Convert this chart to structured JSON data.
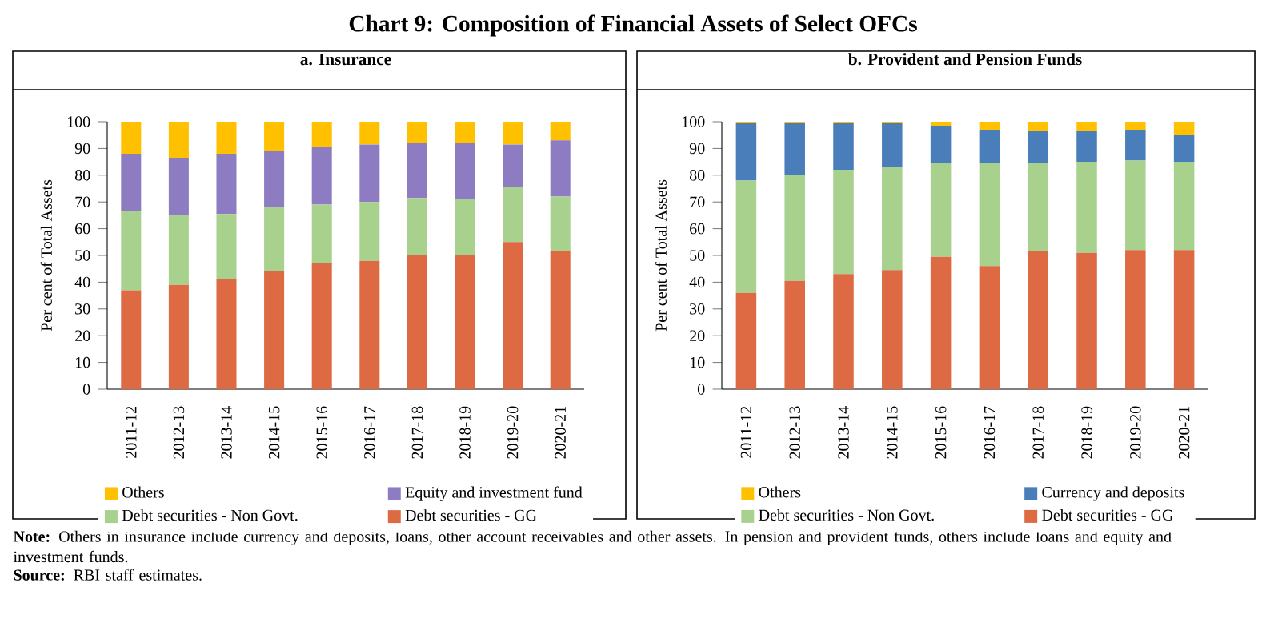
{
  "chart_data": [
    {
      "type": "other",
      "title": "Chart 9: Composition of Financial Assets of Select OFCs",
      "annotations": [
        "**Note:** Others in insurance include currency and deposits, loans, other account receivables and other assets. In pension and provident funds, others include loans and equity and investment funds.",
        "**Source:** RBI staff estimates."
      ]
    },
    {
      "type": "bar",
      "title": "a. Insurance",
      "ylabel": "Per cent of Total Assets",
      "stacked": true,
      "legend": "bottom",
      "ylim": [
        0,
        100
      ],
      "yticks": [
        0,
        10,
        20,
        30,
        40,
        50,
        60,
        70,
        80,
        90,
        100
      ],
      "categories": [
        "2011-12",
        "2012-13",
        "2013-14",
        "2014-15",
        "2015-16",
        "2016-17",
        "2017-18",
        "2018-19",
        "2019-20",
        "2020-21"
      ],
      "series": [
        {
          "name": "Debt securities - GG",
          "color": "#dd6a43",
          "values": [
            37,
            39,
            41,
            44,
            47,
            48,
            50,
            50,
            55,
            51.5
          ]
        },
        {
          "name": "Debt securities - Non Govt.",
          "color": "#a9d18e",
          "values": [
            29.5,
            26,
            24.5,
            24,
            22,
            22,
            21.5,
            21,
            20.5,
            20.5
          ]
        },
        {
          "name": "Equity and investment fund",
          "color": "#8e7cc3",
          "values": [
            21.5,
            21.5,
            22.5,
            21,
            21.5,
            21.5,
            20.5,
            21,
            16,
            21
          ]
        },
        {
          "name": "Others",
          "color": "#ffc000",
          "values": [
            12,
            13.5,
            12,
            11,
            9.5,
            8.5,
            8,
            8,
            8.5,
            7
          ]
        }
      ]
    },
    {
      "type": "bar",
      "title": "b. Provident and Pension Funds",
      "ylabel": "Per cent of Total Assets",
      "stacked": true,
      "legend": "bottom",
      "ylim": [
        0,
        100
      ],
      "yticks": [
        0,
        10,
        20,
        30,
        40,
        50,
        60,
        70,
        80,
        90,
        100
      ],
      "categories": [
        "2011-12",
        "2012-13",
        "2013-14",
        "2014-15",
        "2015-16",
        "2016-17",
        "2017-18",
        "2018-19",
        "2019-20",
        "2020-21"
      ],
      "series": [
        {
          "name": "Debt securities - GG",
          "color": "#dd6a43",
          "values": [
            36,
            40.5,
            43,
            44.5,
            49.5,
            46,
            51.5,
            51,
            52,
            52
          ]
        },
        {
          "name": "Debt securities - Non Govt.",
          "color": "#a9d18e",
          "values": [
            42,
            39.5,
            39,
            38.5,
            35,
            38.5,
            33,
            34,
            33.5,
            33
          ]
        },
        {
          "name": "Currency and deposits",
          "color": "#4a7ebb",
          "values": [
            21.5,
            19.5,
            17.5,
            16.5,
            14,
            12.5,
            12,
            11.5,
            11.5,
            10
          ]
        },
        {
          "name": "Others",
          "color": "#ffc000",
          "values": [
            0.5,
            0.5,
            0.5,
            0.5,
            1.5,
            3,
            3.5,
            3.5,
            3,
            5
          ]
        }
      ]
    }
  ]
}
